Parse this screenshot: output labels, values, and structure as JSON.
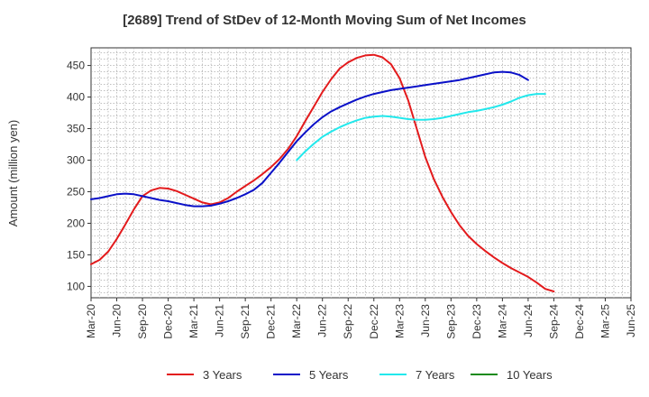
{
  "chart_data": {
    "type": "line",
    "title": "[2689]  Trend of StDev of 12-Month Moving Sum of Net Incomes",
    "xlabel": "",
    "ylabel": "Amount (million yen)",
    "ylim": [
      82,
      478
    ],
    "y_ticks": [
      100,
      150,
      200,
      250,
      300,
      350,
      400,
      450
    ],
    "x_ticks": [
      "Mar-20",
      "Jun-20",
      "Sep-20",
      "Dec-20",
      "Mar-21",
      "Jun-21",
      "Sep-21",
      "Dec-21",
      "Mar-22",
      "Jun-22",
      "Sep-22",
      "Dec-22",
      "Mar-23",
      "Jun-23",
      "Sep-23",
      "Dec-23",
      "Mar-24",
      "Jun-24",
      "Sep-24",
      "Dec-24",
      "Mar-25",
      "Jun-25"
    ],
    "grid": true,
    "legend_position": "bottom",
    "series": [
      {
        "name": "3 Years",
        "color": "#e31a1c",
        "points": [
          [
            "Mar-20",
            135
          ],
          [
            "Apr-20",
            142
          ],
          [
            "May-20",
            155
          ],
          [
            "Jun-20",
            175
          ],
          [
            "Jul-20",
            198
          ],
          [
            "Aug-20",
            222
          ],
          [
            "Sep-20",
            243
          ],
          [
            "Oct-20",
            252
          ],
          [
            "Nov-20",
            256
          ],
          [
            "Dec-20",
            255
          ],
          [
            "Jan-21",
            251
          ],
          [
            "Feb-21",
            245
          ],
          [
            "Mar-21",
            239
          ],
          [
            "Apr-21",
            233
          ],
          [
            "May-21",
            230
          ],
          [
            "Jun-21",
            233
          ],
          [
            "Jul-21",
            240
          ],
          [
            "Aug-21",
            250
          ],
          [
            "Sep-21",
            259
          ],
          [
            "Oct-21",
            268
          ],
          [
            "Nov-21",
            278
          ],
          [
            "Dec-21",
            289
          ],
          [
            "Jan-22",
            302
          ],
          [
            "Feb-22",
            318
          ],
          [
            "Mar-22",
            338
          ],
          [
            "Apr-22",
            362
          ],
          [
            "May-22",
            385
          ],
          [
            "Jun-22",
            408
          ],
          [
            "Jul-22",
            428
          ],
          [
            "Aug-22",
            445
          ],
          [
            "Sep-22",
            455
          ],
          [
            "Oct-22",
            462
          ],
          [
            "Nov-22",
            466
          ],
          [
            "Dec-22",
            467
          ],
          [
            "Jan-23",
            463
          ],
          [
            "Feb-23",
            452
          ],
          [
            "Mar-23",
            430
          ],
          [
            "Apr-23",
            395
          ],
          [
            "May-23",
            350
          ],
          [
            "Jun-23",
            305
          ],
          [
            "Jul-23",
            270
          ],
          [
            "Aug-23",
            242
          ],
          [
            "Sep-23",
            218
          ],
          [
            "Oct-23",
            197
          ],
          [
            "Nov-23",
            180
          ],
          [
            "Dec-23",
            167
          ],
          [
            "Jan-24",
            156
          ],
          [
            "Feb-24",
            146
          ],
          [
            "Mar-24",
            137
          ],
          [
            "Apr-24",
            129
          ],
          [
            "May-24",
            122
          ],
          [
            "Jun-24",
            115
          ],
          [
            "Jul-24",
            106
          ],
          [
            "Aug-24",
            96
          ],
          [
            "Sep-24",
            92
          ]
        ]
      },
      {
        "name": "5 Years",
        "color": "#0a10c8",
        "points": [
          [
            "Mar-20",
            238
          ],
          [
            "Apr-20",
            240
          ],
          [
            "May-20",
            243
          ],
          [
            "Jun-20",
            246
          ],
          [
            "Jul-20",
            247
          ],
          [
            "Aug-20",
            246
          ],
          [
            "Sep-20",
            243
          ],
          [
            "Oct-20",
            240
          ],
          [
            "Nov-20",
            237
          ],
          [
            "Dec-20",
            235
          ],
          [
            "Jan-21",
            232
          ],
          [
            "Feb-21",
            229
          ],
          [
            "Mar-21",
            227
          ],
          [
            "Apr-21",
            227
          ],
          [
            "May-21",
            228
          ],
          [
            "Jun-21",
            231
          ],
          [
            "Jul-21",
            235
          ],
          [
            "Aug-21",
            240
          ],
          [
            "Sep-21",
            246
          ],
          [
            "Oct-21",
            253
          ],
          [
            "Nov-21",
            264
          ],
          [
            "Dec-21",
            280
          ],
          [
            "Jan-22",
            296
          ],
          [
            "Feb-22",
            313
          ],
          [
            "Mar-22",
            330
          ],
          [
            "Apr-22",
            344
          ],
          [
            "May-22",
            357
          ],
          [
            "Jun-22",
            368
          ],
          [
            "Jul-22",
            377
          ],
          [
            "Aug-22",
            384
          ],
          [
            "Sep-22",
            390
          ],
          [
            "Oct-22",
            396
          ],
          [
            "Nov-22",
            401
          ],
          [
            "Dec-22",
            405
          ],
          [
            "Jan-23",
            408
          ],
          [
            "Feb-23",
            411
          ],
          [
            "Mar-23",
            413
          ],
          [
            "Apr-23",
            415
          ],
          [
            "May-23",
            417
          ],
          [
            "Jun-23",
            419
          ],
          [
            "Jul-23",
            421
          ],
          [
            "Aug-23",
            423
          ],
          [
            "Sep-23",
            425
          ],
          [
            "Oct-23",
            427
          ],
          [
            "Nov-23",
            430
          ],
          [
            "Dec-23",
            433
          ],
          [
            "Jan-24",
            436
          ],
          [
            "Feb-24",
            439
          ],
          [
            "Mar-24",
            440
          ],
          [
            "Apr-24",
            439
          ],
          [
            "May-24",
            435
          ],
          [
            "Jun-24",
            427
          ]
        ]
      },
      {
        "name": "7 Years",
        "color": "#22e8ec",
        "points": [
          [
            "Mar-22",
            300
          ],
          [
            "Apr-22",
            314
          ],
          [
            "May-22",
            326
          ],
          [
            "Jun-22",
            337
          ],
          [
            "Jul-22",
            345
          ],
          [
            "Aug-22",
            352
          ],
          [
            "Sep-22",
            358
          ],
          [
            "Oct-22",
            363
          ],
          [
            "Nov-22",
            367
          ],
          [
            "Dec-22",
            369
          ],
          [
            "Jan-23",
            370
          ],
          [
            "Feb-23",
            369
          ],
          [
            "Mar-23",
            367
          ],
          [
            "Apr-23",
            365
          ],
          [
            "May-23",
            364
          ],
          [
            "Jun-23",
            364
          ],
          [
            "Jul-23",
            365
          ],
          [
            "Aug-23",
            367
          ],
          [
            "Sep-23",
            370
          ],
          [
            "Oct-23",
            373
          ],
          [
            "Nov-23",
            376
          ],
          [
            "Dec-23",
            378
          ],
          [
            "Jan-24",
            381
          ],
          [
            "Feb-24",
            384
          ],
          [
            "Mar-24",
            388
          ],
          [
            "Apr-24",
            393
          ],
          [
            "May-24",
            399
          ],
          [
            "Jun-24",
            403
          ],
          [
            "Jul-24",
            405
          ],
          [
            "Aug-24",
            405
          ]
        ]
      },
      {
        "name": "10 Years",
        "color": "#1a8a1a",
        "points": []
      }
    ]
  }
}
